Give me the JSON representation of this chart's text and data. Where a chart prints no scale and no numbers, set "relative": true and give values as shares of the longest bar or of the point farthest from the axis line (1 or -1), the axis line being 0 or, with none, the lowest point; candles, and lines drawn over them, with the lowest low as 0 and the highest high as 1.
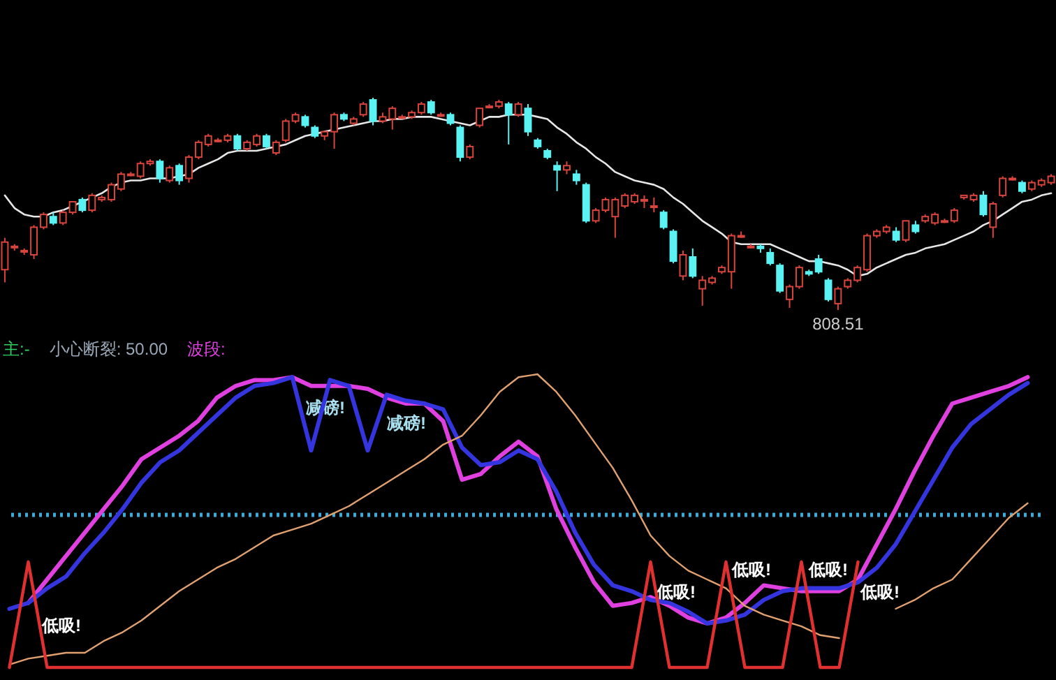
{
  "chart_data": [
    {
      "type": "candlestick",
      "relative": true,
      "categories": [
        null,
        null,
        null,
        null,
        null,
        null,
        null,
        null,
        null,
        null,
        null,
        null,
        null,
        null,
        null,
        null,
        null,
        null,
        null,
        null,
        null,
        null,
        null,
        null,
        null,
        null,
        null,
        null,
        null,
        null,
        null,
        null,
        null,
        null,
        null,
        null,
        null,
        null,
        null,
        null,
        null,
        null,
        null,
        null,
        null,
        null,
        null,
        null,
        null,
        null,
        null,
        null,
        null,
        null,
        null,
        null,
        null,
        null,
        null,
        null,
        null,
        null,
        null,
        null,
        null,
        null,
        null,
        null,
        null,
        null,
        null,
        null,
        null,
        null,
        null,
        null,
        null,
        null,
        null,
        null,
        null,
        null,
        null,
        null,
        null,
        null,
        null,
        null,
        null,
        null,
        null,
        null,
        null,
        null,
        null,
        null,
        null,
        null,
        null,
        null,
        null,
        null,
        null,
        null,
        null,
        null,
        null,
        null,
        null
      ],
      "colors": [
        "#d9443c",
        "#d9443c",
        "#d9443c",
        "#d9443c",
        "#d9443c",
        "#5af2f2",
        "#d9443c",
        "#d9443c",
        "#5af2f2",
        "#d9443c",
        "#d9443c",
        "#d9443c",
        "#d9443c",
        "#d9443c",
        "#d9443c",
        "#d9443c",
        "#5af2f2",
        "#d9443c",
        "#5af2f2",
        "#d9443c",
        "#d9443c",
        "#d9443c",
        "#d9443c",
        "#d9443c",
        "#5af2f2",
        "#d9443c",
        "#d9443c",
        "#5af2f2",
        "#d9443c",
        "#d9443c",
        "#d9443c",
        "#5af2f2",
        "#5af2f2",
        "#d9443c",
        "#d9443c",
        "#5af2f2",
        "#d9443c",
        "#d9443c",
        "#5af2f2",
        "#d9443c",
        "#d9443c",
        "#d9443c",
        "#d9443c",
        "#d9443c",
        "#5af2f2",
        "#d9443c",
        "#5af2f2",
        "#5af2f2",
        "#d9443c",
        "#d9443c",
        "#d9443c",
        "#d9443c",
        "#5af2f2",
        "#d9443c",
        "#5af2f2",
        "#5af2f2",
        "#5af2f2",
        "#5af2f2",
        "#d9443c",
        "#5af2f2",
        "#5af2f2",
        "#d9443c",
        "#d9443c",
        "#d9443c",
        "#d9443c",
        "#d9443c",
        "#d9443c",
        "#d9443c",
        "#5af2f2",
        "#5af2f2",
        "#d9443c",
        "#5af2f2",
        "#d9443c",
        "#d9443c",
        "#d9443c",
        "#d9443c",
        "#d9443c",
        "#d9443c",
        "#5af2f2",
        "#5af2f2",
        "#5af2f2",
        "#d9443c",
        "#d9443c",
        "#5af2f2",
        "#5af2f2",
        "#5af2f2",
        "#d9443c",
        "#d9443c",
        "#d9443c",
        "#d9443c",
        "#d9443c",
        "#d9443c",
        "#5af2f2",
        "#d9443c",
        "#5af2f2",
        "#d9443c",
        "#d9443c",
        "#d9443c",
        "#d9443c",
        "#d9443c",
        "#d9443c",
        "#5af2f2",
        "#d9443c",
        "#d9443c",
        "#d9443c",
        "#5af2f2",
        "#d9443c",
        "#d9443c",
        "#d9443c"
      ],
      "ohlc": [
        [
          0.19,
          0.34,
          0.13,
          0.32
        ],
        [
          0.3,
          0.31,
          0.28,
          0.3
        ],
        [
          0.28,
          0.29,
          0.26,
          0.28
        ],
        [
          0.26,
          0.4,
          0.24,
          0.39
        ],
        [
          0.39,
          0.46,
          0.38,
          0.45
        ],
        [
          0.44,
          0.46,
          0.4,
          0.41
        ],
        [
          0.41,
          0.47,
          0.4,
          0.46
        ],
        [
          0.46,
          0.51,
          0.45,
          0.51
        ],
        [
          0.52,
          0.53,
          0.46,
          0.47
        ],
        [
          0.47,
          0.55,
          0.46,
          0.54
        ],
        [
          0.52,
          0.54,
          0.51,
          0.53
        ],
        [
          0.52,
          0.6,
          0.51,
          0.59
        ],
        [
          0.57,
          0.65,
          0.56,
          0.64
        ],
        [
          0.64,
          0.65,
          0.63,
          0.64
        ],
        [
          0.63,
          0.7,
          0.62,
          0.69
        ],
        [
          0.69,
          0.71,
          0.68,
          0.7
        ],
        [
          0.7,
          0.71,
          0.6,
          0.62
        ],
        [
          0.61,
          0.68,
          0.6,
          0.67
        ],
        [
          0.68,
          0.69,
          0.59,
          0.61
        ],
        [
          0.62,
          0.73,
          0.6,
          0.72
        ],
        [
          0.72,
          0.8,
          0.71,
          0.79
        ],
        [
          0.78,
          0.83,
          0.77,
          0.82
        ],
        [
          0.8,
          0.81,
          0.79,
          0.8
        ],
        [
          0.8,
          0.83,
          0.79,
          0.82
        ],
        [
          0.82,
          0.83,
          0.75,
          0.76
        ],
        [
          0.76,
          0.8,
          0.75,
          0.79
        ],
        [
          0.78,
          0.83,
          0.77,
          0.82
        ],
        [
          0.82,
          0.83,
          0.76,
          0.77
        ],
        [
          0.74,
          0.8,
          0.73,
          0.79
        ],
        [
          0.8,
          0.9,
          0.79,
          0.89
        ],
        [
          0.89,
          0.93,
          0.88,
          0.92
        ],
        [
          0.91,
          0.92,
          0.86,
          0.87
        ],
        [
          0.86,
          0.87,
          0.81,
          0.82
        ],
        [
          0.82,
          0.84,
          0.8,
          0.84
        ],
        [
          0.84,
          0.93,
          0.76,
          0.92
        ],
        [
          0.92,
          0.93,
          0.89,
          0.9
        ],
        [
          0.88,
          0.91,
          0.87,
          0.9
        ],
        [
          0.92,
          0.98,
          0.91,
          0.97
        ],
        [
          0.99,
          1,
          0.87,
          0.89
        ],
        [
          0.89,
          0.93,
          0.88,
          0.91
        ],
        [
          0.9,
          0.96,
          0.85,
          0.95
        ],
        [
          0.91,
          0.92,
          0.9,
          0.91
        ],
        [
          0.91,
          0.94,
          0.9,
          0.93
        ],
        [
          0.93,
          0.98,
          0.92,
          0.97
        ],
        [
          0.98,
          0.99,
          0.92,
          0.93
        ],
        [
          0.92,
          0.93,
          0.91,
          0.92
        ],
        [
          0.92,
          0.93,
          0.87,
          0.88
        ],
        [
          0.86,
          0.87,
          0.7,
          0.72
        ],
        [
          0.72,
          0.78,
          0.71,
          0.77
        ],
        [
          0.87,
          0.95,
          0.86,
          0.95
        ],
        [
          0.96,
          0.97,
          0.95,
          0.96
        ],
        [
          0.96,
          0.99,
          0.95,
          0.98
        ],
        [
          0.97,
          0.98,
          0.78,
          0.92
        ],
        [
          0.92,
          0.98,
          0.91,
          0.97
        ],
        [
          0.95,
          0.97,
          0.82,
          0.84
        ],
        [
          0.8,
          0.81,
          0.76,
          0.77
        ],
        [
          0.75,
          0.76,
          0.71,
          0.72
        ],
        [
          0.68,
          0.7,
          0.56,
          0.66
        ],
        [
          0.66,
          0.7,
          0.64,
          0.68
        ],
        [
          0.64,
          0.66,
          0.59,
          0.61
        ],
        [
          0.59,
          0.6,
          0.41,
          0.42
        ],
        [
          0.42,
          0.48,
          0.41,
          0.47
        ],
        [
          0.47,
          0.53,
          0.46,
          0.52
        ],
        [
          0.44,
          0.53,
          0.34,
          0.52
        ],
        [
          0.49,
          0.55,
          0.48,
          0.54
        ],
        [
          0.51,
          0.55,
          0.5,
          0.54
        ],
        [
          0.52,
          0.54,
          0.48,
          0.52
        ],
        [
          0.49,
          0.53,
          0.46,
          0.49
        ],
        [
          0.46,
          0.47,
          0.38,
          0.39
        ],
        [
          0.37,
          0.38,
          0.22,
          0.23
        ],
        [
          0.16,
          0.28,
          0.14,
          0.26
        ],
        [
          0.25,
          0.29,
          0.15,
          0.16
        ],
        [
          0.1,
          0.16,
          0.02,
          0.14
        ],
        [
          0.13,
          0.16,
          0.12,
          0.15
        ],
        [
          0.18,
          0.21,
          0.17,
          0.2
        ],
        [
          0.18,
          0.36,
          0.1,
          0.35
        ],
        [
          0.35,
          0.37,
          0.34,
          0.35
        ],
        [
          0.3,
          0.31,
          0.29,
          0.3
        ],
        [
          0.3,
          0.31,
          0.27,
          0.29
        ],
        [
          0.27,
          0.29,
          0.21,
          0.22
        ],
        [
          0.21,
          0.22,
          0.08,
          0.09
        ],
        [
          0.05,
          0.12,
          0.01,
          0.11
        ],
        [
          0.11,
          0.21,
          0.1,
          0.2
        ],
        [
          0.18,
          0.19,
          0.16,
          0.17
        ],
        [
          0.24,
          0.26,
          0.17,
          0.18
        ],
        [
          0.14,
          0.15,
          0.04,
          0.05
        ],
        [
          0.03,
          0.11,
          0,
          0.1
        ],
        [
          0.11,
          0.15,
          0.1,
          0.14
        ],
        [
          0.14,
          0.21,
          0.13,
          0.2
        ],
        [
          0.19,
          0.36,
          0.18,
          0.35
        ],
        [
          0.35,
          0.38,
          0.34,
          0.37
        ],
        [
          0.37,
          0.4,
          0.36,
          0.39
        ],
        [
          0.37,
          0.39,
          0.32,
          0.33
        ],
        [
          0.33,
          0.42,
          0.32,
          0.42
        ],
        [
          0.4,
          0.42,
          0.36,
          0.37
        ],
        [
          0.42,
          0.45,
          0.41,
          0.44
        ],
        [
          0.41,
          0.46,
          0.4,
          0.45
        ],
        [
          0.42,
          0.43,
          0.41,
          0.42
        ],
        [
          0.42,
          0.48,
          0.41,
          0.47
        ],
        [
          0.53,
          0.54,
          0.52,
          0.54
        ],
        [
          0.52,
          0.55,
          0.51,
          0.54
        ],
        [
          0.54,
          0.56,
          0.44,
          0.45
        ],
        [
          0.39,
          0.51,
          0.34,
          0.5
        ],
        [
          0.54,
          0.63,
          0.53,
          0.62
        ],
        [
          0.62,
          0.63,
          0.61,
          0.62
        ],
        [
          0.6,
          0.61,
          0.55,
          0.56
        ],
        [
          0.57,
          0.61,
          0.56,
          0.6
        ],
        [
          0.59,
          0.62,
          0.58,
          0.61
        ],
        [
          0.6,
          0.64,
          0.59,
          0.63
        ]
      ],
      "series": [
        {
          "type": "line",
          "color": "#e6e6e6",
          "values": [
            0.54,
            0.48,
            0.45,
            0.44,
            0.44,
            0.46,
            0.47,
            0.49,
            0.51,
            0.53,
            0.55,
            0.58,
            0.6,
            0.61,
            0.61,
            0.62,
            0.62,
            0.62,
            0.63,
            0.64,
            0.67,
            0.69,
            0.71,
            0.74,
            0.75,
            0.75,
            0.75,
            0.76,
            0.77,
            0.78,
            0.8,
            0.82,
            0.83,
            0.84,
            0.85,
            0.86,
            0.87,
            0.88,
            0.89,
            0.89,
            0.9,
            0.9,
            0.91,
            0.91,
            0.91,
            0.9,
            0.89,
            0.88,
            0.87,
            0.89,
            0.91,
            0.91,
            0.92,
            0.92,
            0.92,
            0.91,
            0.9,
            0.86,
            0.83,
            0.79,
            0.76,
            0.72,
            0.69,
            0.65,
            0.63,
            0.61,
            0.6,
            0.59,
            0.57,
            0.53,
            0.5,
            0.46,
            0.42,
            0.39,
            0.36,
            0.32,
            0.31,
            0.31,
            0.31,
            0.31,
            0.29,
            0.27,
            0.25,
            0.23,
            0.23,
            0.22,
            0.21,
            0.19,
            0.16,
            0.17,
            0.2,
            0.22,
            0.24,
            0.26,
            0.27,
            0.29,
            0.3,
            0.31,
            0.33,
            0.35,
            0.37,
            0.4,
            0.42,
            0.45,
            0.48,
            0.51,
            0.52,
            0.54,
            0.55
          ]
        }
      ],
      "annotations": [
        {
          "text": "808.51",
          "y": 0
        }
      ]
    },
    {
      "type": "line",
      "relative": true,
      "categories": [
        null,
        null,
        null,
        null,
        null,
        null,
        null,
        null,
        null,
        null,
        null,
        null,
        null,
        null,
        null,
        null,
        null,
        null,
        null,
        null,
        null,
        null,
        null,
        null,
        null,
        null,
        null,
        null,
        null,
        null,
        null,
        null,
        null,
        null,
        null,
        null,
        null,
        null,
        null,
        null,
        null,
        null,
        null,
        null,
        null,
        null,
        null,
        null,
        null,
        null,
        null,
        null,
        null,
        null,
        null,
        null
      ],
      "ref_lines": [
        {
          "axis": "y",
          "value": 0.52,
          "color": "#3fa9d8",
          "line_style": "dotted"
        }
      ],
      "series": [
        {
          "color": "#e040e0",
          "values": [
            null,
            0.22,
            0.3,
            0.38,
            0.46,
            0.54,
            0.62,
            0.71,
            0.75,
            0.79,
            0.84,
            0.92,
            0.96,
            0.98,
            0.98,
            0.99,
            0.96,
            0.96,
            0.96,
            0.95,
            0.92,
            0.9,
            0.9,
            0.84,
            0.64,
            0.66,
            0.72,
            0.77,
            0.72,
            0.54,
            0.41,
            0.29,
            0.21,
            0.22,
            0.24,
            0.21,
            0.17,
            0.15,
            0.17,
            0.22,
            0.28,
            0.27,
            0.26,
            0.26,
            0.26,
            0.3,
            0.42,
            0.54,
            0.67,
            0.79,
            0.9,
            0.92,
            0.94,
            0.96,
            0.99,
            null
          ]
        },
        {
          "color": "#3535e0",
          "values": [
            0.2,
            0.22,
            0.27,
            0.31,
            0.39,
            0.46,
            0.54,
            0.63,
            0.7,
            0.74,
            0.8,
            0.86,
            0.92,
            0.96,
            0.97,
            0.99,
            0.74,
            0.98,
            0.96,
            0.74,
            0.93,
            0.91,
            0.9,
            0.88,
            0.75,
            0.69,
            0.7,
            0.74,
            0.71,
            0.6,
            0.46,
            0.35,
            0.28,
            0.26,
            0.23,
            0.22,
            0.19,
            0.15,
            0.16,
            0.18,
            0.23,
            0.26,
            0.27,
            0.27,
            0.27,
            0.29,
            0.34,
            0.42,
            0.53,
            0.64,
            0.75,
            0.83,
            0.88,
            0.93,
            0.97,
            null
          ]
        },
        {
          "color": "#e0a070",
          "values": [
            0.01,
            0.03,
            0.04,
            0.05,
            0.05,
            0.09,
            0.12,
            0.16,
            0.21,
            0.26,
            0.3,
            0.34,
            0.37,
            0.41,
            0.45,
            0.47,
            0.49,
            0.52,
            0.55,
            0.59,
            0.63,
            0.67,
            0.71,
            0.76,
            0.79,
            0.86,
            0.94,
            0.99,
            1,
            0.94,
            0.86,
            0.77,
            0.68,
            0.57,
            0.45,
            0.38,
            0.33,
            0.3,
            0.27,
            0.21,
            0.18,
            0.16,
            0.14,
            0.11,
            0.1,
            null,
            null,
            0.2,
            0.23,
            0.27,
            0.3,
            0.37,
            0.44,
            0.51,
            0.56,
            null
          ]
        },
        {
          "color": "#e03030",
          "values": [
            0,
            0.36,
            0,
            0,
            0,
            0,
            0,
            0,
            0,
            0,
            0,
            0,
            0,
            0,
            0,
            0,
            0,
            0,
            0,
            0,
            0,
            0,
            0,
            0,
            0,
            0,
            0,
            0,
            0,
            0,
            0,
            0,
            0,
            0,
            0.36,
            0,
            0,
            0,
            0.36,
            0,
            0,
            0,
            0.36,
            0,
            0,
            0.36,
            null,
            null,
            null,
            null,
            null,
            null,
            null,
            null,
            null,
            null
          ]
        }
      ],
      "annotations": [
        "主:-",
        "小心断裂: 50.00",
        "波段:",
        "减磅!",
        "减磅!",
        "低吸!",
        "低吸!",
        "低吸!",
        "低吸!",
        "低吸!"
      ]
    }
  ]
}
